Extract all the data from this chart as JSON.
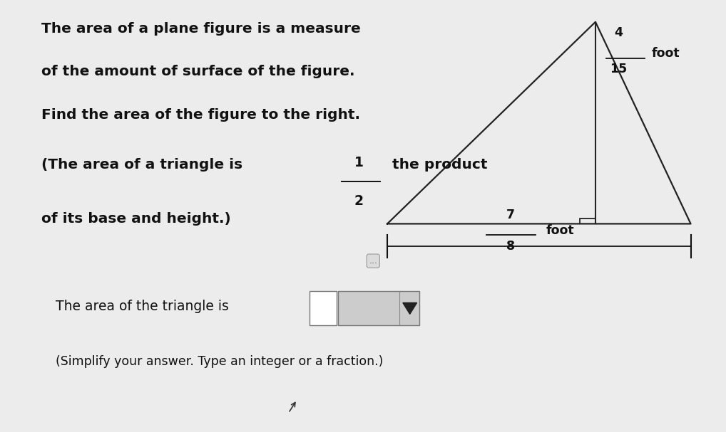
{
  "bg_top": "#ececec",
  "bg_bottom": "#e4e4e4",
  "teal_bar": "#3a8fc0",
  "left_gray": "#888888",
  "left_yellow": "#c8b000",
  "divider_color": "#b0b0b0",
  "text_color": "#111111",
  "triangle_color": "#222222",
  "line1": "The area of a plane figure is a measure",
  "line2": "of the amount of surface of the figure.",
  "line3": "Find the area of the figure to the right.",
  "line4_prefix": "(The area of a triangle is ",
  "line4_suffix": " the product",
  "line5": "of its base and height.)",
  "frac_num": "1",
  "frac_den": "2",
  "height_num": "4",
  "height_den": "15",
  "height_unit": "foot",
  "base_num": "7",
  "base_den": "8",
  "base_unit": "foot",
  "bottom_line1": "The area of the triangle is",
  "bottom_line2": "(Simplify your answer. Type an integer or a fraction.)",
  "dots": "...",
  "text_fontsize": 14.5,
  "small_fontsize": 12.5
}
